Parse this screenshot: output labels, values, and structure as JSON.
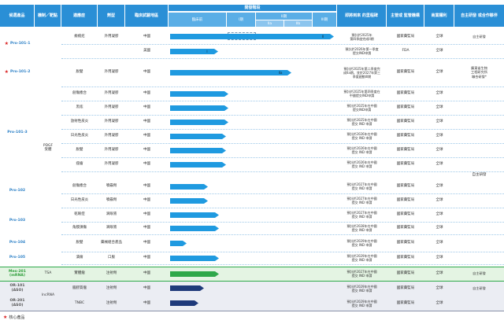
{
  "header": {
    "product": "候選產品",
    "mechanism": "機制／靶點",
    "indication": "適應症",
    "dosage_form": "劑型",
    "region": "臨床試驗地區",
    "stage_group": "開發階段",
    "preclinical": "臨床前",
    "phase1": "I期",
    "phase2": "II期",
    "phase2a": "IIa",
    "phase2b": "IIb",
    "phase3": "III期",
    "milestone": "即將到來\n的里程碑",
    "regulator": "主管或\n監管機構",
    "rights": "商業權利",
    "partner": "自主研發\n或合作夥伴"
  },
  "mechanism_pdgf": "PDGF\n受體",
  "mechanism_tsa": "TSA",
  "mechanism_lncrna": "lncRNA",
  "rows": [
    {
      "indication": "瘢痕疙",
      "form": "外用凝膠",
      "region": "中國",
      "milestone": "預計於2025年\n第四季度完成II期",
      "regulator": "國家藥監局",
      "rights": "全球",
      "progress": 0.97,
      "badge": "II",
      "partner": "自主研發"
    },
    {
      "indication": "",
      "form": "",
      "region": "美國",
      "milestone": "預計於2026年第一季度\n提交IND申請",
      "regulator": "FDA",
      "rights": "全球",
      "progress": 0.285,
      "badge": "I",
      "partner": ""
    },
    {
      "indication": "脫髮",
      "form": "外用凝膠",
      "region": "中國",
      "milestone": "預計於2025年第二季度完\n成IIa期，並於2027年第三\n季度啟動III期",
      "regulator": "國家藥監局",
      "rights": "全球",
      "progress": 0.72,
      "badge": "IIa",
      "partner": "廣東省生物\n工程研究所\n聯合研發*"
    },
    {
      "indication": "創傷癒合",
      "form": "外用凝膠",
      "region": "中國",
      "milestone": "預計於2025年第四季度在\n中國提交IND申請",
      "regulator": "國家藥監局",
      "rights": "全球",
      "progress": 0.345,
      "badge": "",
      "partner": ""
    },
    {
      "indication": "黑痣",
      "form": "外用凝膠",
      "region": "中國",
      "milestone": "預計於2025年在中國\n提交IND申請",
      "regulator": "國家藥監局",
      "rights": "全球",
      "progress": 0.345,
      "badge": "",
      "partner": ""
    },
    {
      "indication": "放射性皮炎",
      "form": "外用凝膠",
      "region": "中國",
      "milestone": "預計於2025年在中國\n提交 IND 申請",
      "regulator": "國家藥監局",
      "rights": "全球",
      "progress": 0.345,
      "badge": "",
      "partner": ""
    },
    {
      "indication": "日光性皮炎",
      "form": "外用凝膠",
      "region": "中國",
      "milestone": "預計於2026年在中國\n提交 IND 申請",
      "regulator": "國家藥監局",
      "rights": "全球",
      "progress": 0.33,
      "badge": "",
      "partner": ""
    },
    {
      "indication": "脫髮",
      "form": "外用凝膠",
      "region": "中國",
      "milestone": "預計於2026年在中國\n提交 IND 申請",
      "regulator": "國家藥監局",
      "rights": "全球",
      "progress": 0.33,
      "badge": "",
      "partner": ""
    },
    {
      "indication": "痤瘡",
      "form": "外用凝膠",
      "region": "中國",
      "milestone": "預計於2026年在中國\n提交 IND 申請",
      "regulator": "國家藥監局",
      "rights": "全球",
      "progress": 0.33,
      "badge": "",
      "partner": ""
    },
    {
      "indication": "創傷癒合",
      "form": "噴霧劑",
      "region": "中國",
      "milestone": "預計於2027年在中國\n提交 IND 申請",
      "regulator": "國家藥監局",
      "rights": "全球",
      "progress": 0.225,
      "badge": "",
      "partner": ""
    },
    {
      "indication": "日光性皮炎",
      "form": "噴霧劑",
      "region": "中國",
      "milestone": "預計於2027年在中國\n提交 IND 申請",
      "regulator": "國家藥監局",
      "rights": "全球",
      "progress": 0.225,
      "badge": "",
      "partner": ""
    },
    {
      "indication": "乾眼症",
      "form": "滴眼液",
      "region": "中國",
      "milestone": "預計於2027年在中國\n提交 IND 申請",
      "regulator": "國家藥監局",
      "rights": "全球",
      "progress": 0.29,
      "badge": "",
      "partner": ""
    },
    {
      "indication": "角膜損傷",
      "form": "滴眼液",
      "region": "中國",
      "milestone": "預計於2028年在中國\n提交 IND 申請",
      "regulator": "國家藥監局",
      "rights": "全球",
      "progress": 0.29,
      "badge": "",
      "partner": ""
    },
    {
      "indication": "脫髮",
      "form": "藥械組合產品",
      "region": "中國",
      "milestone": "預計於2029年在中國\n提交 IND 申請",
      "regulator": "國家藥監局",
      "rights": "全球",
      "progress": 0.1,
      "badge": "",
      "partner": ""
    },
    {
      "indication": "潰瘍",
      "form": "口服",
      "region": "中國",
      "milestone": "預計於2029年在中國\n提交 IND 申請",
      "regulator": "國家藥監局",
      "rights": "全球",
      "progress": 0.29,
      "badge": "",
      "partner": ""
    },
    {
      "indication": "實體瘤",
      "form": "注射劑",
      "region": "中國",
      "milestone": "預計於2027年在中國\n提交 IND 申請",
      "regulator": "國家藥監局",
      "rights": "全球",
      "progress": 0.29,
      "badge": "",
      "partner": "自主研發"
    },
    {
      "indication": "腦膠質瘤",
      "form": "注射劑",
      "region": "中國",
      "milestone": "預計於2029年在中國\n提交 IND 申請",
      "regulator": "國家藥監局",
      "rights": "全球",
      "progress": 0.2,
      "badge": "",
      "partner": "自主研發"
    },
    {
      "indication": "TNBC",
      "form": "注射劑",
      "region": "中國",
      "milestone": "預計於2029年在中國\n提交 IND 申請",
      "regulator": "國家藥監局",
      "rights": "全球",
      "progress": 0.17,
      "badge": "",
      "partner": ""
    }
  ],
  "products": {
    "p1": "Pro-101-1",
    "p2": "Pro-101-2",
    "p3": "Pro-101-3",
    "p102": "Pro-102",
    "p103": "Pro-103",
    "p104": "Pro-104",
    "p105": "Pro-105",
    "mes": "Mes-201\n(mRNA)",
    "oh1": "OR-101\n(ASO)",
    "oh2": "OR-201\n(ASO)"
  },
  "partner_self_main": "自主研發",
  "footnote": "核心產品",
  "colors": {
    "header": "#2a8fd6",
    "bar_blue": "#1f9ae0",
    "bar_green": "#2ea84a",
    "bar_navy": "#1f3a7a",
    "star": "#d92020"
  }
}
